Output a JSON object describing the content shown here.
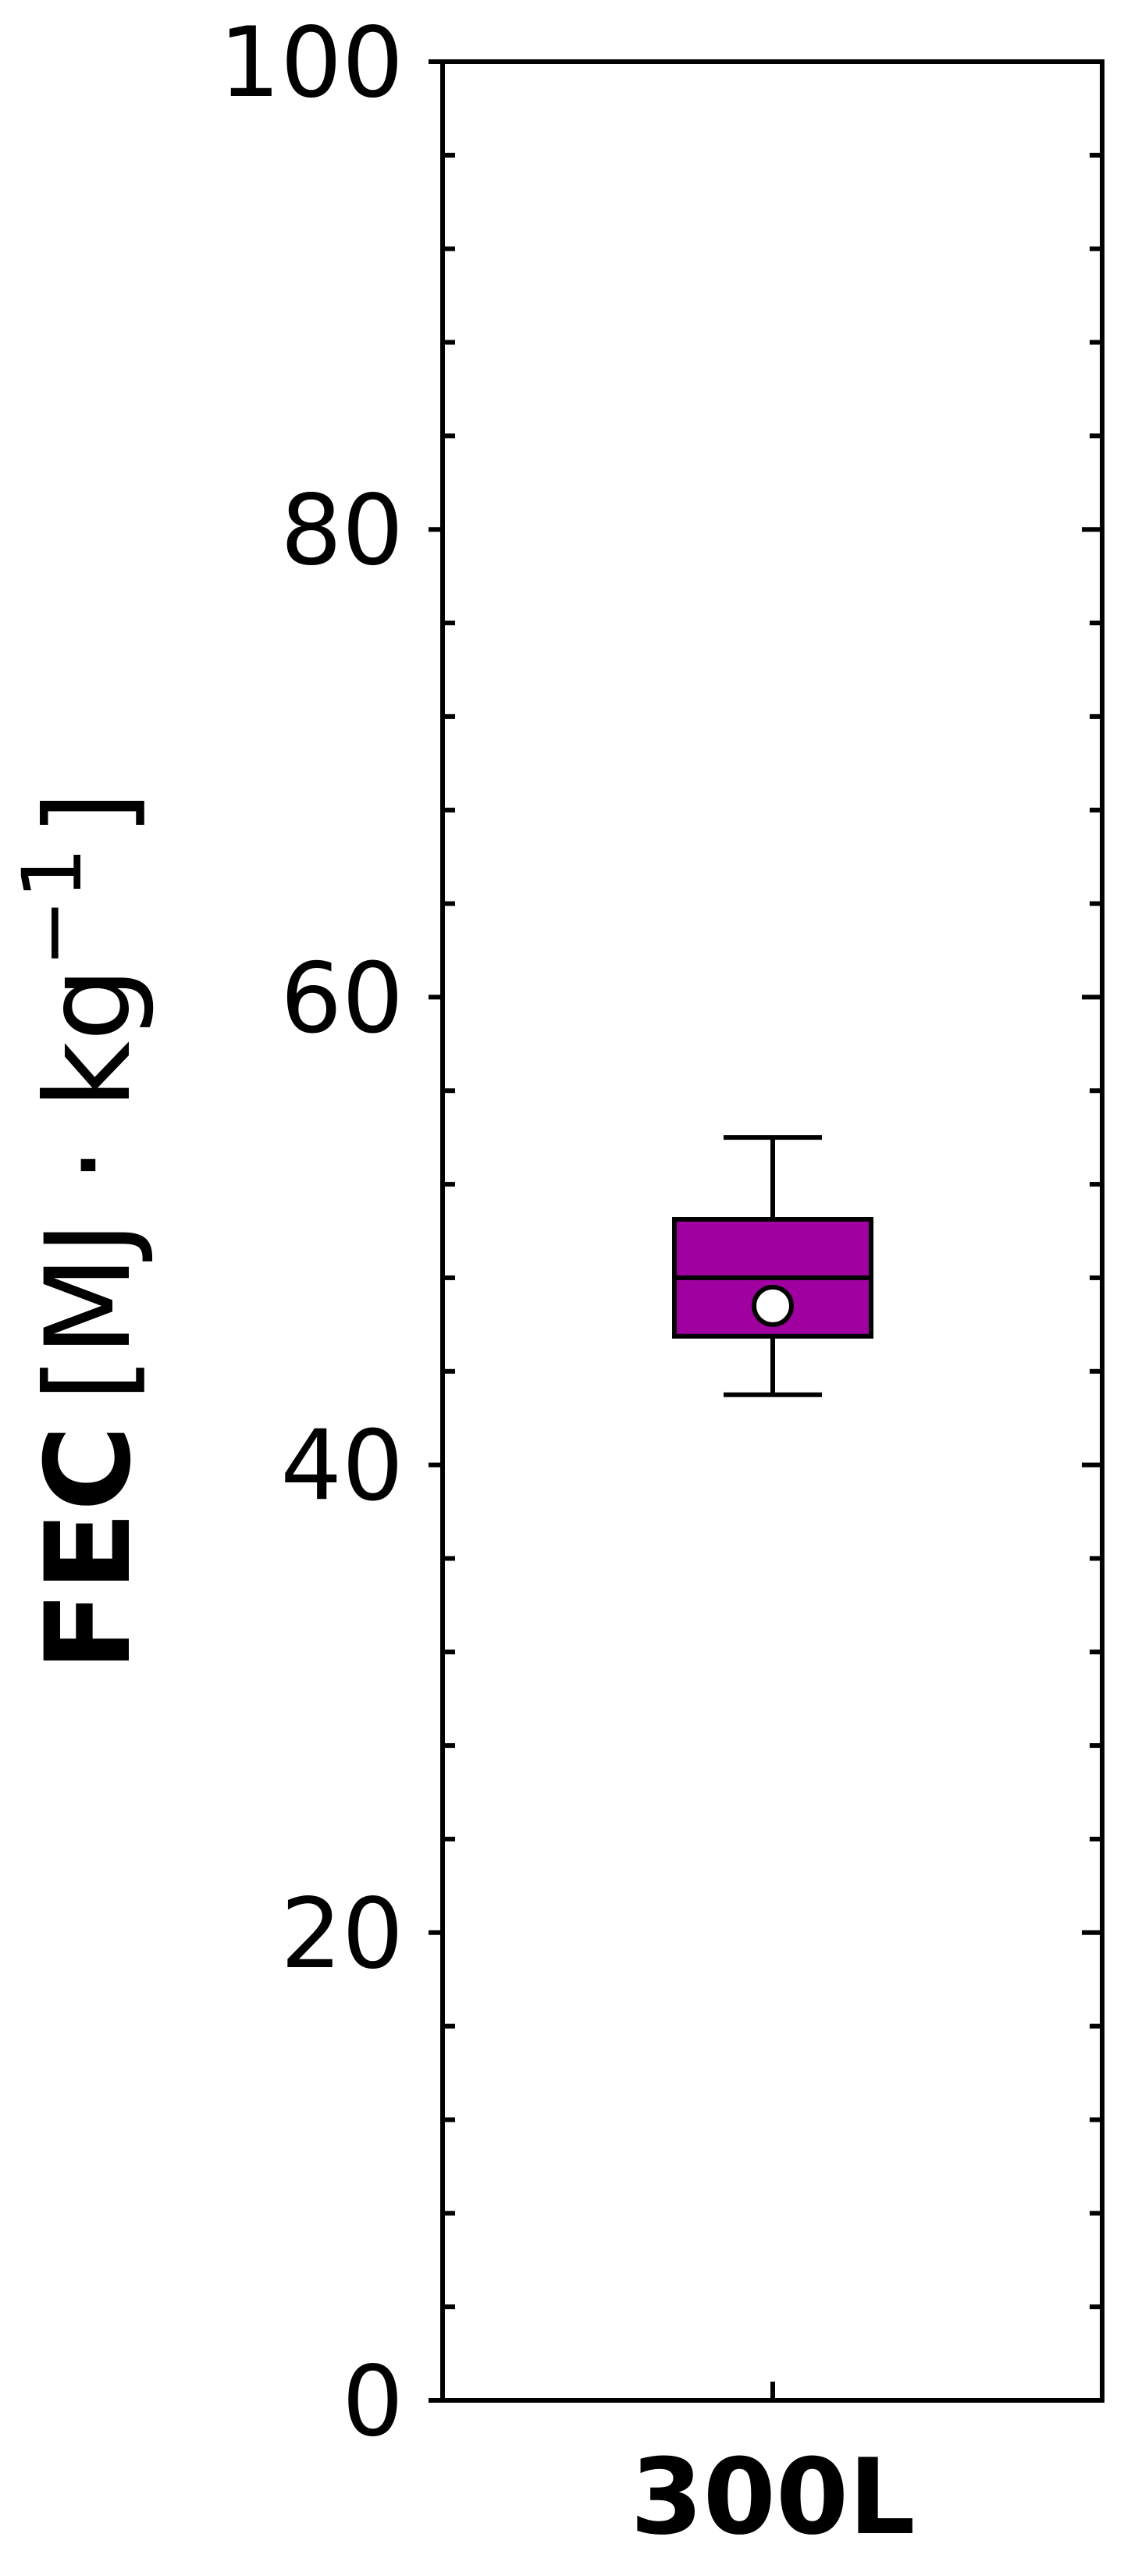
{
  "chart_data": {
    "type": "box",
    "categories": [
      "300L"
    ],
    "ylabel": {
      "bold": "FEC",
      "unit_prefix": "[MJ · kg",
      "exponent": "−1",
      "unit_suffix": "]"
    },
    "ylim": [
      0,
      100
    ],
    "yticks": [
      "0",
      "20",
      "40",
      "60",
      "80",
      "100"
    ],
    "ytick_values": [
      0,
      20,
      40,
      60,
      80,
      100
    ],
    "minor_tick_step": 4,
    "grid": false,
    "box": {
      "category": "300L",
      "whisker_low": 43,
      "q1": 45.5,
      "median": 48,
      "q3": 50.5,
      "whisker_high": 54,
      "mean": 46.8,
      "color": "#a000a0"
    }
  }
}
